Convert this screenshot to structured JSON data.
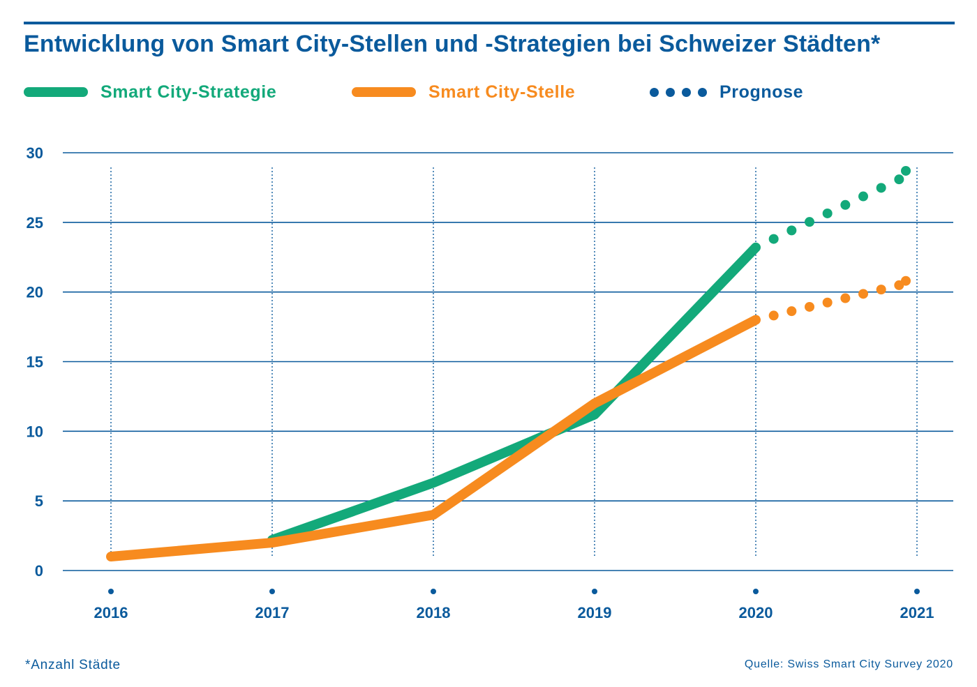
{
  "title": "Entwicklung von Smart City-Stellen und -Strategien bei Schweizer Städten*",
  "legend": {
    "strategy_label": "Smart City-Strategie",
    "office_label": "Smart City-Stelle",
    "forecast_label": "Prognose"
  },
  "colors": {
    "primary_blue": "#0a5a9c",
    "strategy_green": "#13a97a",
    "office_orange": "#f78b1f"
  },
  "footnote": "*Anzahl Städte",
  "source": "Quelle: Swiss Smart City Survey 2020",
  "chart_data": {
    "type": "line",
    "title": "Entwicklung von Smart City-Stellen und -Strategien bei Schweizer Städten*",
    "categories": [
      "2016",
      "2017",
      "2018",
      "2019",
      "2020",
      "2021"
    ],
    "yticks": [
      "0",
      "5",
      "10",
      "15",
      "20",
      "25",
      "30"
    ],
    "ylim": [
      0,
      30
    ],
    "grid": true,
    "legend_position": "top",
    "series": [
      {
        "name": "Smart City-Strategie",
        "color": "#13a97a",
        "actual": [
          {
            "x": "2017",
            "y": 2.2
          },
          {
            "x": "2018",
            "y": 6.3
          },
          {
            "x": "2019",
            "y": 11.2
          },
          {
            "x": "2020",
            "y": 23.2
          }
        ],
        "forecast": [
          {
            "x": "2020",
            "y": 23.2
          },
          {
            "x": "2021",
            "y": 28.7
          }
        ]
      },
      {
        "name": "Smart City-Stelle",
        "color": "#f78b1f",
        "actual": [
          {
            "x": "2016",
            "y": 1.0
          },
          {
            "x": "2017",
            "y": 2.0
          },
          {
            "x": "2018",
            "y": 4.0
          },
          {
            "x": "2019",
            "y": 12.0
          },
          {
            "x": "2020",
            "y": 18.0
          }
        ],
        "forecast": [
          {
            "x": "2020",
            "y": 18.0
          },
          {
            "x": "2021",
            "y": 20.8
          }
        ]
      }
    ]
  }
}
